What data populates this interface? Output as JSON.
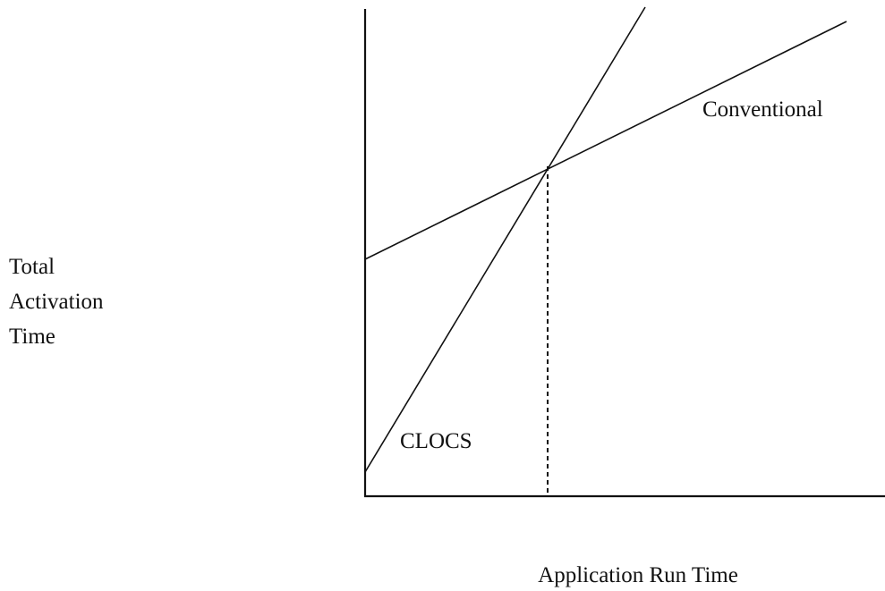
{
  "diagram": {
    "y_axis_label": [
      "Total",
      "Activation",
      "Time"
    ],
    "x_axis_label": "Application Run Time",
    "lines": [
      {
        "label": "Conventional"
      },
      {
        "label": "CLOCS"
      }
    ]
  }
}
